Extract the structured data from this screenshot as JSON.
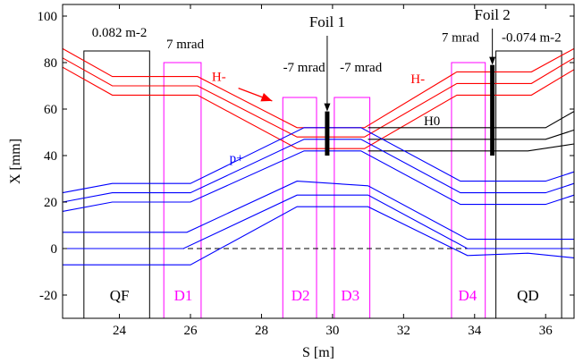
{
  "chart_data": {
    "type": "line",
    "xlabel": "S [m]",
    "ylabel": "X [mm]",
    "xlim": [
      22.4,
      36.8
    ],
    "ylim": [
      -30,
      105
    ],
    "xticks": [
      24,
      26,
      28,
      30,
      32,
      34,
      36
    ],
    "yticks": [
      -20,
      0,
      20,
      40,
      60,
      80,
      100
    ],
    "grid": false,
    "colors": {
      "h_minus": "#ff0000",
      "proton": "#0000ff",
      "h0": "#000000",
      "dipole": "#ff00ff",
      "quad": "#000000"
    },
    "magnets": [
      {
        "label": "QF",
        "kind": "quad",
        "s_range": [
          23.0,
          24.85
        ],
        "x_range": [
          -30,
          85
        ],
        "label_pos": [
          24.0,
          -20
        ]
      },
      {
        "label": "D1",
        "kind": "dipole",
        "s_range": [
          25.25,
          26.3
        ],
        "x_range": [
          -30,
          80
        ],
        "label_pos": [
          25.8,
          -20
        ]
      },
      {
        "label": "D2",
        "kind": "dipole",
        "s_range": [
          28.6,
          29.55
        ],
        "x_range": [
          -30,
          65
        ],
        "label_pos": [
          29.1,
          -20
        ]
      },
      {
        "label": "D3",
        "kind": "dipole",
        "s_range": [
          30.05,
          31.05
        ],
        "x_range": [
          -30,
          65
        ],
        "label_pos": [
          30.5,
          -20
        ]
      },
      {
        "label": "D4",
        "kind": "dipole",
        "s_range": [
          33.35,
          34.3
        ],
        "x_range": [
          -30,
          80
        ],
        "label_pos": [
          33.8,
          -20
        ]
      },
      {
        "label": "QD",
        "kind": "quad",
        "s_range": [
          34.6,
          36.45
        ],
        "x_range": [
          -30,
          85
        ],
        "label_pos": [
          35.5,
          -20
        ]
      }
    ],
    "foils": [
      {
        "label": "Foil 1",
        "s": 29.85,
        "x_range": [
          40,
          59
        ]
      },
      {
        "label": "Foil 2",
        "s": 34.5,
        "x_range": [
          40,
          79
        ]
      }
    ],
    "annotations": [
      {
        "text": "0.082 m-2",
        "s": 24.0,
        "x": 93,
        "color": "#000000"
      },
      {
        "text": "7 mrad",
        "s": 25.85,
        "x": 88,
        "color": "#000000"
      },
      {
        "text": "H-",
        "s": 26.8,
        "x": 74,
        "color": "#ff0000"
      },
      {
        "text": "-7 mrad",
        "s": 29.2,
        "x": 78,
        "color": "#000000"
      },
      {
        "text": "-7 mrad",
        "s": 30.8,
        "x": 78,
        "color": "#000000"
      },
      {
        "text": "p+",
        "s": 27.3,
        "x": 39,
        "color": "#0000ff"
      },
      {
        "text": "H-",
        "s": 32.4,
        "x": 73,
        "color": "#ff0000"
      },
      {
        "text": "H0",
        "s": 32.8,
        "x": 55,
        "color": "#000000"
      },
      {
        "text": "7 mrad",
        "s": 33.6,
        "x": 91,
        "color": "#000000"
      },
      {
        "text": "-0.074 m-2",
        "s": 35.6,
        "x": 91,
        "color": "#000000"
      }
    ],
    "series": [
      {
        "color": "#ff0000",
        "points": [
          [
            22.4,
            86
          ],
          [
            23.8,
            74
          ],
          [
            26.2,
            74
          ],
          [
            29.0,
            52
          ],
          [
            30.9,
            52
          ],
          [
            33.5,
            76
          ],
          [
            35.6,
            76
          ],
          [
            36.8,
            86
          ]
        ]
      },
      {
        "color": "#ff0000",
        "points": [
          [
            22.4,
            82
          ],
          [
            23.8,
            70
          ],
          [
            26.2,
            70
          ],
          [
            29.0,
            48
          ],
          [
            30.9,
            48
          ],
          [
            33.5,
            71
          ],
          [
            35.6,
            71
          ],
          [
            36.8,
            82
          ]
        ]
      },
      {
        "color": "#ff0000",
        "points": [
          [
            22.4,
            78
          ],
          [
            23.8,
            66
          ],
          [
            26.2,
            66
          ],
          [
            29.0,
            43
          ],
          [
            30.9,
            43
          ],
          [
            33.5,
            66
          ],
          [
            35.6,
            66
          ],
          [
            36.8,
            77
          ]
        ]
      },
      {
        "color": "#000000",
        "points": [
          [
            31.0,
            52
          ],
          [
            36.0,
            52
          ],
          [
            36.8,
            59
          ]
        ]
      },
      {
        "color": "#000000",
        "points": [
          [
            31.0,
            47
          ],
          [
            36.0,
            47
          ],
          [
            36.8,
            51
          ]
        ]
      },
      {
        "color": "#000000",
        "points": [
          [
            31.0,
            42
          ],
          [
            35.5,
            42
          ],
          [
            36.8,
            45
          ]
        ]
      },
      {
        "color": "#0000ff",
        "points": [
          [
            22.4,
            24
          ],
          [
            23.8,
            28
          ],
          [
            26.0,
            28
          ],
          [
            29.2,
            52
          ],
          [
            30.8,
            52
          ],
          [
            33.6,
            29
          ],
          [
            36.0,
            29
          ],
          [
            36.8,
            33
          ]
        ]
      },
      {
        "color": "#0000ff",
        "points": [
          [
            22.4,
            20
          ],
          [
            23.8,
            24
          ],
          [
            26.0,
            24
          ],
          [
            29.2,
            47
          ],
          [
            30.8,
            47
          ],
          [
            33.6,
            24
          ],
          [
            36.0,
            24
          ],
          [
            36.8,
            28
          ]
        ]
      },
      {
        "color": "#0000ff",
        "points": [
          [
            22.4,
            16
          ],
          [
            23.8,
            20
          ],
          [
            26.0,
            20
          ],
          [
            29.2,
            42
          ],
          [
            30.8,
            42
          ],
          [
            33.6,
            19
          ],
          [
            36.0,
            19
          ],
          [
            36.8,
            23
          ]
        ]
      },
      {
        "color": "#0000ff",
        "points": [
          [
            22.4,
            7
          ],
          [
            24.5,
            7
          ],
          [
            25.9,
            7
          ],
          [
            29.0,
            29
          ],
          [
            31.0,
            27
          ],
          [
            33.8,
            4
          ],
          [
            36.0,
            4
          ],
          [
            36.8,
            4
          ]
        ]
      },
      {
        "color": "#0000ff",
        "points": [
          [
            22.4,
            0
          ],
          [
            25.8,
            0
          ],
          [
            29.0,
            23
          ],
          [
            31.0,
            23
          ],
          [
            33.8,
            0
          ],
          [
            36.8,
            0
          ]
        ]
      },
      {
        "color": "#0000ff",
        "points": [
          [
            22.4,
            -7
          ],
          [
            24.5,
            -7
          ],
          [
            26.0,
            -7
          ],
          [
            29.0,
            18
          ],
          [
            31.0,
            18
          ],
          [
            33.8,
            -3
          ],
          [
            35.5,
            -2
          ],
          [
            36.8,
            -4
          ]
        ]
      }
    ]
  }
}
